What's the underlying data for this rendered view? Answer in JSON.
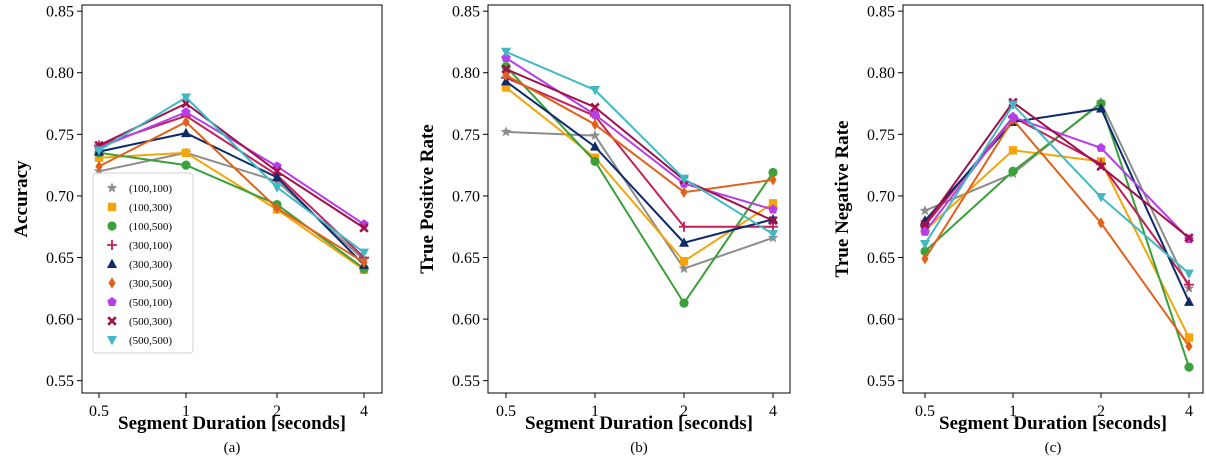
{
  "chart_data": [
    {
      "type": "line",
      "panel_label": "(a)",
      "xlabel": "Segment Duration [seconds]",
      "ylabel": "Accuracy",
      "x": [
        0.5,
        1,
        2,
        4
      ],
      "x_tick_labels": [
        "0.5",
        "1",
        "2",
        "4"
      ],
      "ylim": [
        0.54,
        0.855
      ],
      "y_ticks": [
        0.55,
        0.6,
        0.65,
        0.7,
        0.75,
        0.8,
        0.85
      ],
      "y_tick_labels": [
        "0.55",
        "0.60",
        "0.65",
        "0.70",
        "0.75",
        "0.80",
        "0.85"
      ],
      "legend_position": "lower-left",
      "series": [
        {
          "name": "(100,100)",
          "values": [
            0.72,
            0.735,
            0.712,
            0.648
          ]
        },
        {
          "name": "(100,300)",
          "values": [
            0.731,
            0.735,
            0.689,
            0.64
          ]
        },
        {
          "name": "(100,500)",
          "values": [
            0.735,
            0.725,
            0.693,
            0.641
          ]
        },
        {
          "name": "(300,100)",
          "values": [
            0.741,
            0.765,
            0.717,
            0.65
          ]
        },
        {
          "name": "(300,300)",
          "values": [
            0.736,
            0.751,
            0.715,
            0.644
          ]
        },
        {
          "name": "(300,500)",
          "values": [
            0.724,
            0.76,
            0.69,
            0.646
          ]
        },
        {
          "name": "(500,100)",
          "values": [
            0.739,
            0.768,
            0.724,
            0.677
          ]
        },
        {
          "name": "(500,300)",
          "values": [
            0.741,
            0.775,
            0.72,
            0.674
          ]
        },
        {
          "name": "(500,500)",
          "values": [
            0.737,
            0.78,
            0.707,
            0.654
          ]
        }
      ]
    },
    {
      "type": "line",
      "panel_label": "(b)",
      "xlabel": "Segment Duration [seconds]",
      "ylabel": "True Positive Rate",
      "x": [
        0.5,
        1,
        2,
        4
      ],
      "x_tick_labels": [
        "0.5",
        "1",
        "2",
        "4"
      ],
      "ylim": [
        0.54,
        0.855
      ],
      "y_ticks": [
        0.55,
        0.6,
        0.65,
        0.7,
        0.75,
        0.8,
        0.85
      ],
      "y_tick_labels": [
        "0.55",
        "0.60",
        "0.65",
        "0.70",
        "0.75",
        "0.80",
        "0.85"
      ],
      "series": [
        {
          "name": "(100,100)",
          "values": [
            0.752,
            0.749,
            0.641,
            0.666
          ]
        },
        {
          "name": "(100,300)",
          "values": [
            0.788,
            0.731,
            0.647,
            0.694
          ]
        },
        {
          "name": "(100,500)",
          "values": [
            0.805,
            0.728,
            0.613,
            0.719
          ]
        },
        {
          "name": "(300,100)",
          "values": [
            0.796,
            0.765,
            0.675,
            0.675
          ]
        },
        {
          "name": "(300,300)",
          "values": [
            0.793,
            0.74,
            0.662,
            0.681
          ]
        },
        {
          "name": "(300,500)",
          "values": [
            0.798,
            0.758,
            0.703,
            0.713
          ]
        },
        {
          "name": "(500,100)",
          "values": [
            0.812,
            0.766,
            0.71,
            0.689
          ]
        },
        {
          "name": "(500,300)",
          "values": [
            0.803,
            0.772,
            0.713,
            0.68
          ]
        },
        {
          "name": "(500,500)",
          "values": [
            0.817,
            0.786,
            0.714,
            0.669
          ]
        }
      ]
    },
    {
      "type": "line",
      "panel_label": "(c)",
      "xlabel": "Segment Duration [seconds]",
      "ylabel": "True Negative Rate",
      "x": [
        0.5,
        1,
        2,
        4
      ],
      "x_tick_labels": [
        "0.5",
        "1",
        "2",
        "4"
      ],
      "ylim": [
        0.54,
        0.855
      ],
      "y_ticks": [
        0.55,
        0.6,
        0.65,
        0.7,
        0.75,
        0.8,
        0.85
      ],
      "y_tick_labels": [
        "0.55",
        "0.60",
        "0.65",
        "0.70",
        "0.75",
        "0.80",
        "0.85"
      ],
      "series": [
        {
          "name": "(100,100)",
          "values": [
            0.688,
            0.718,
            0.776,
            0.625
          ]
        },
        {
          "name": "(100,300)",
          "values": [
            0.672,
            0.737,
            0.728,
            0.585
          ]
        },
        {
          "name": "(100,500)",
          "values": [
            0.655,
            0.72,
            0.775,
            0.561
          ]
        },
        {
          "name": "(300,100)",
          "values": [
            0.676,
            0.764,
            0.726,
            0.628
          ]
        },
        {
          "name": "(300,300)",
          "values": [
            0.68,
            0.76,
            0.771,
            0.614
          ]
        },
        {
          "name": "(300,500)",
          "values": [
            0.649,
            0.762,
            0.678,
            0.578
          ]
        },
        {
          "name": "(500,100)",
          "values": [
            0.671,
            0.764,
            0.739,
            0.665
          ]
        },
        {
          "name": "(500,300)",
          "values": [
            0.677,
            0.776,
            0.724,
            0.666
          ]
        },
        {
          "name": "(500,500)",
          "values": [
            0.661,
            0.774,
            0.699,
            0.637
          ]
        }
      ]
    }
  ],
  "series_styles": [
    {
      "color": "#8c8c8c",
      "marker": "star"
    },
    {
      "color": "#f5a40a",
      "marker": "square"
    },
    {
      "color": "#3aa03a",
      "marker": "circle"
    },
    {
      "color": "#c21f5b",
      "marker": "plus"
    },
    {
      "color": "#0d2a6b",
      "marker": "triangle-up"
    },
    {
      "color": "#e0621a",
      "marker": "diamond"
    },
    {
      "color": "#b63fe8",
      "marker": "pentagon"
    },
    {
      "color": "#a0104a",
      "marker": "x"
    },
    {
      "color": "#40b9c4",
      "marker": "triangle-down"
    }
  ]
}
